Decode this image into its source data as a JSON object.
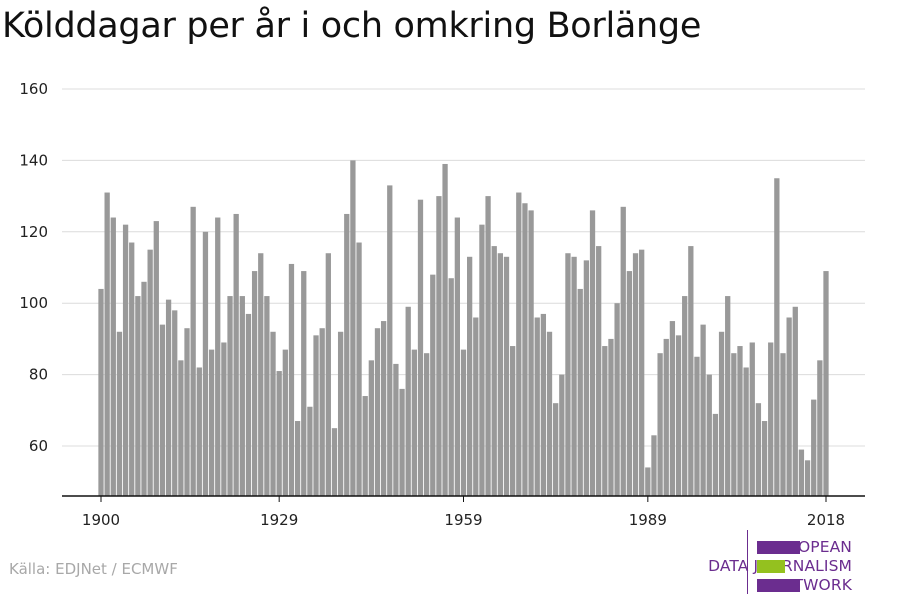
{
  "chart_data": {
    "type": "bar",
    "title": "Kölddagar per år i och omkring Borlänge",
    "xlabel": "",
    "ylabel": "",
    "x": [
      1900,
      1901,
      1902,
      1903,
      1904,
      1905,
      1906,
      1907,
      1908,
      1909,
      1910,
      1911,
      1912,
      1913,
      1914,
      1915,
      1916,
      1917,
      1918,
      1919,
      1920,
      1921,
      1922,
      1923,
      1924,
      1925,
      1926,
      1927,
      1928,
      1929,
      1930,
      1931,
      1932,
      1933,
      1934,
      1935,
      1936,
      1937,
      1938,
      1939,
      1940,
      1941,
      1942,
      1943,
      1944,
      1945,
      1946,
      1947,
      1948,
      1949,
      1950,
      1951,
      1952,
      1953,
      1954,
      1955,
      1956,
      1957,
      1958,
      1959,
      1960,
      1961,
      1962,
      1963,
      1964,
      1965,
      1966,
      1967,
      1968,
      1969,
      1970,
      1971,
      1972,
      1973,
      1974,
      1975,
      1976,
      1977,
      1978,
      1979,
      1980,
      1981,
      1982,
      1983,
      1984,
      1985,
      1986,
      1987,
      1988,
      1989,
      1990,
      1991,
      1992,
      1993,
      1994,
      1995,
      1996,
      1997,
      1998,
      1999,
      2000,
      2001,
      2002,
      2003,
      2004,
      2005,
      2006,
      2007,
      2008,
      2009,
      2010,
      2011,
      2012,
      2013,
      2014,
      2015,
      2016,
      2017,
      2018
    ],
    "values": [
      104,
      131,
      124,
      92,
      122,
      117,
      102,
      106,
      115,
      123,
      94,
      101,
      98,
      84,
      93,
      127,
      82,
      120,
      87,
      124,
      89,
      102,
      125,
      102,
      97,
      109,
      114,
      102,
      92,
      81,
      87,
      111,
      67,
      109,
      71,
      91,
      93,
      114,
      65,
      92,
      125,
      140,
      117,
      74,
      84,
      93,
      95,
      133,
      83,
      76,
      99,
      87,
      129,
      86,
      108,
      130,
      139,
      107,
      124,
      87,
      113,
      96,
      122,
      130,
      116,
      114,
      113,
      88,
      131,
      128,
      126,
      96,
      97,
      92,
      72,
      80,
      114,
      113,
      104,
      112,
      126,
      116,
      88,
      90,
      100,
      127,
      109,
      114,
      115,
      54,
      63,
      86,
      90,
      95,
      91,
      102,
      116,
      85,
      94,
      80,
      69,
      92,
      102,
      86,
      88,
      82,
      89,
      72,
      67,
      89,
      135,
      86,
      96,
      99,
      59,
      56,
      73,
      84,
      109
    ],
    "xticks": [
      "1900",
      "1929",
      "1959",
      "1989",
      "2018"
    ],
    "yticks": [
      "60",
      "80",
      "100",
      "120",
      "140",
      "160"
    ],
    "ylim": [
      46,
      160
    ],
    "grid": true,
    "bar_color": "#999999"
  },
  "source": "Källa: EDJNet / ECMWF",
  "logo": {
    "line1": "EUROPEAN",
    "line2": "DATA JOURNALISM",
    "line3": "NETWORK",
    "purple": "#6b2d8f",
    "green": "#94c11f"
  }
}
